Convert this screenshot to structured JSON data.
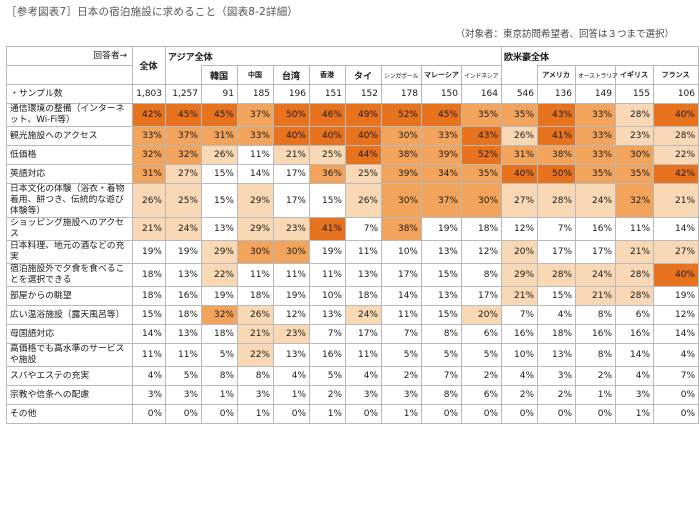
{
  "title": "［参考図表7］日本の宿泊施設に求めること（図表8-2詳細）",
  "note": "（対象者：東京訪問希望者、回答は３つまで選択）",
  "header": {
    "respondent_label": "回答者→",
    "total": "全体",
    "asia_group": "アジア全体",
    "west_group": "欧米豪全体",
    "sample_label": "サンプル数",
    "bullet": "・",
    "countries": [
      "韓国",
      "中国",
      "台湾",
      "香港",
      "タイ",
      "シンガポール",
      "マレーシア",
      "インドネシア",
      "アメリカ",
      "オーストラリア",
      "イギリス",
      "フランス"
    ]
  },
  "samples": [
    "1,803",
    "1,257",
    "91",
    "185",
    "196",
    "151",
    "152",
    "178",
    "150",
    "164",
    "546",
    "136",
    "149",
    "155",
    "106"
  ],
  "rows": [
    {
      "label": "通信環境の整備（インターネット、Wi-Fi等）",
      "values": [
        42,
        45,
        45,
        37,
        50,
        46,
        49,
        52,
        45,
        35,
        35,
        43,
        33,
        28,
        40
      ]
    },
    {
      "label": "観光施設へのアクセス",
      "values": [
        33,
        37,
        31,
        33,
        40,
        40,
        40,
        30,
        33,
        43,
        26,
        41,
        33,
        23,
        28
      ]
    },
    {
      "label": "低価格",
      "values": [
        32,
        32,
        26,
        11,
        21,
        25,
        44,
        38,
        39,
        52,
        31,
        38,
        33,
        30,
        22
      ]
    },
    {
      "label": "英語対応",
      "values": [
        31,
        27,
        15,
        14,
        17,
        36,
        25,
        39,
        34,
        35,
        40,
        50,
        35,
        35,
        42
      ]
    },
    {
      "label": "日本文化の体験（浴衣・着物着用、餅つき、伝統的な遊び体験等）",
      "values": [
        26,
        25,
        15,
        29,
        17,
        15,
        26,
        30,
        37,
        30,
        27,
        28,
        24,
        32,
        21
      ]
    },
    {
      "label": "ショッピング施設へのアクセス",
      "values": [
        21,
        24,
        13,
        29,
        23,
        41,
        7,
        38,
        19,
        18,
        12,
        7,
        16,
        11,
        14
      ]
    },
    {
      "label": "日本料理、地元の酒などの充実",
      "values": [
        19,
        19,
        29,
        30,
        30,
        19,
        11,
        10,
        13,
        12,
        20,
        17,
        17,
        21,
        27
      ]
    },
    {
      "label": "宿泊施設外で夕食を食べることを選択できる",
      "values": [
        18,
        13,
        22,
        11,
        11,
        11,
        13,
        17,
        15,
        8,
        29,
        28,
        24,
        28,
        40
      ]
    },
    {
      "label": "部屋からの眺望",
      "values": [
        18,
        16,
        19,
        18,
        19,
        10,
        18,
        14,
        13,
        17,
        21,
        15,
        21,
        28,
        19
      ]
    },
    {
      "label": "広い温浴施設（露天風呂等）",
      "values": [
        15,
        18,
        32,
        26,
        12,
        13,
        24,
        11,
        15,
        20,
        7,
        4,
        8,
        6,
        12
      ]
    },
    {
      "label": "母国語対応",
      "values": [
        14,
        13,
        18,
        21,
        23,
        7,
        17,
        7,
        8,
        6,
        16,
        18,
        16,
        16,
        14
      ]
    },
    {
      "label": "高価格でも高水準のサービスや施設",
      "values": [
        11,
        11,
        5,
        22,
        13,
        16,
        11,
        5,
        5,
        5,
        10,
        13,
        8,
        14,
        4
      ]
    },
    {
      "label": "スパやエステの充実",
      "values": [
        4,
        5,
        8,
        8,
        4,
        5,
        4,
        2,
        7,
        2,
        4,
        3,
        2,
        4,
        7
      ]
    },
    {
      "label": "宗教や信条への配慮",
      "values": [
        3,
        3,
        1,
        3,
        1,
        2,
        3,
        3,
        8,
        6,
        2,
        2,
        1,
        3,
        0
      ]
    },
    {
      "label": "その他",
      "values": [
        0,
        0,
        0,
        1,
        0,
        1,
        0,
        1,
        0,
        0,
        0,
        0,
        0,
        1,
        0
      ]
    }
  ],
  "colors": {
    "high": "#E8731F",
    "mid": "#F2A45C",
    "low": "#F9D9B5",
    "none": "#FFFFFF"
  }
}
